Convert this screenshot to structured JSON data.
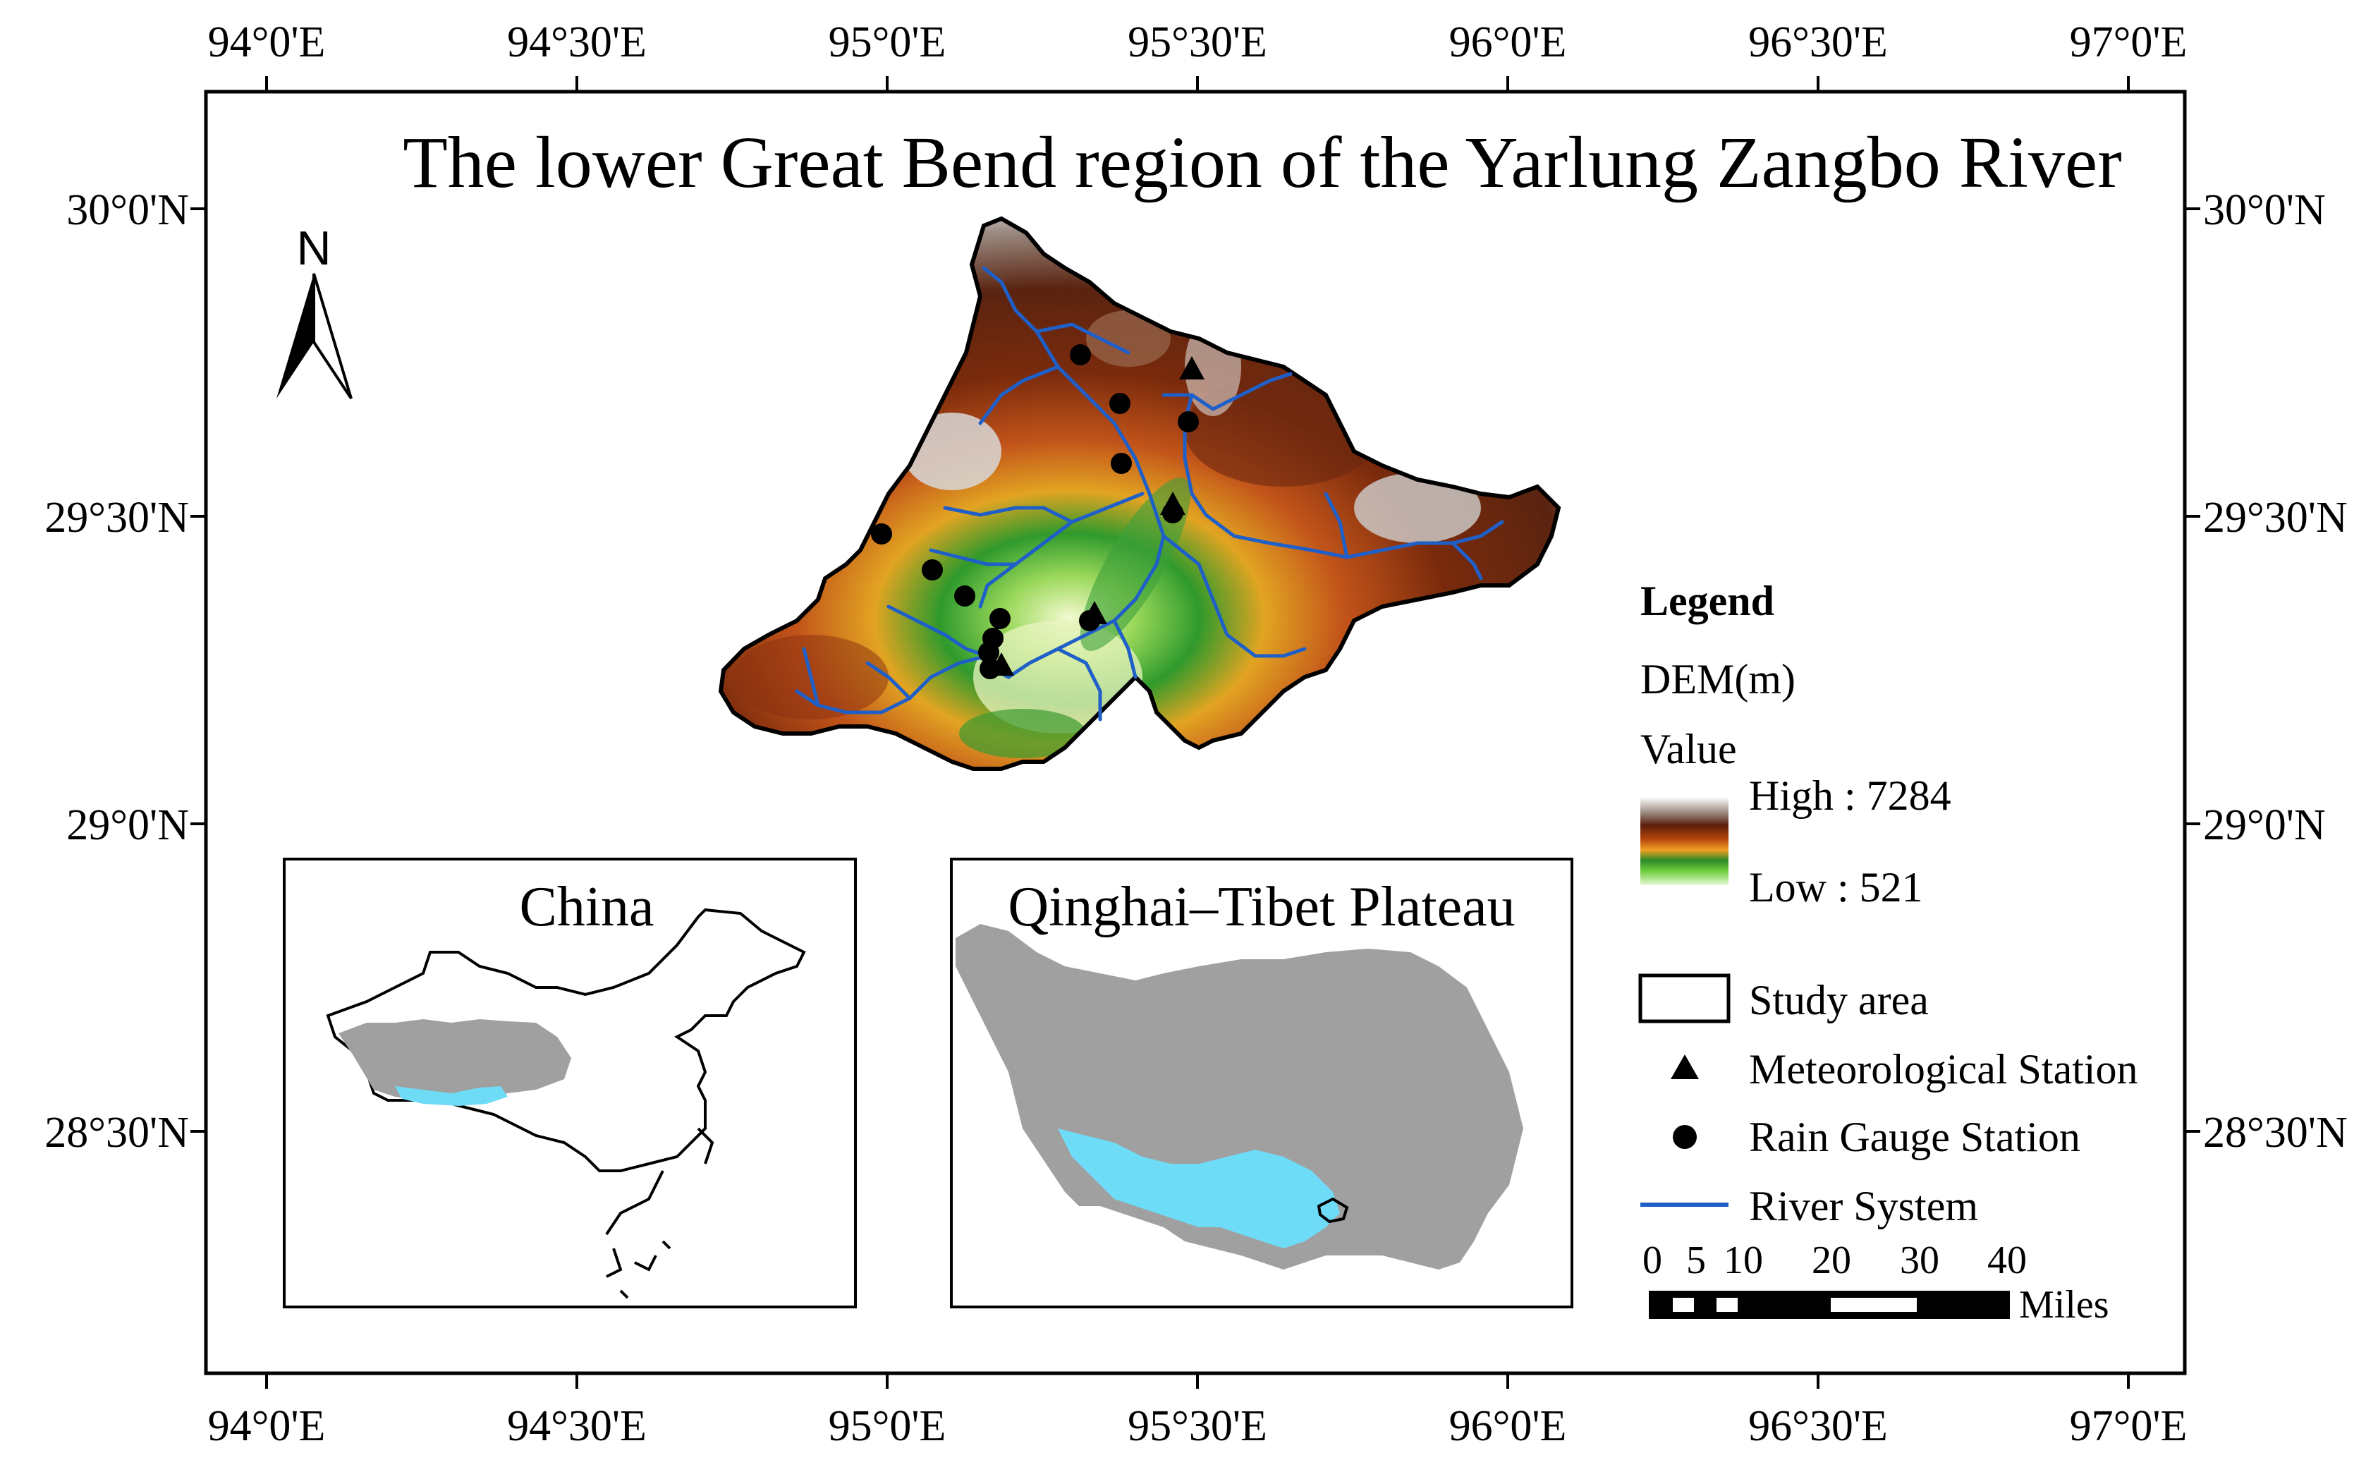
{
  "title": "The lower Great Bend region of the Yarlung Zangbo River",
  "north_arrow": {
    "letter": "N",
    "icon": "north-arrow-icon"
  },
  "graticule": {
    "top_labels": [
      "94°0'E",
      "94°30'E",
      "95°0'E",
      "95°30'E",
      "96°0'E",
      "96°30'E",
      "97°0'E"
    ],
    "bottom_labels": [
      "94°0'E",
      "94°30'E",
      "95°0'E",
      "95°30'E",
      "96°0'E",
      "96°30'E",
      "97°0'E"
    ],
    "left_labels": [
      "30°0'N",
      "29°30'N",
      "29°0'N",
      "28°30'N"
    ],
    "right_labels": [
      "30°0'N",
      "29°30'N",
      "29°0'N",
      "28°30'N"
    ]
  },
  "legend": {
    "heading": "Legend",
    "dem_title": "DEM(m)",
    "value_label": "Value",
    "high_label": "High : 7284",
    "low_label": "Low : 521",
    "items": [
      {
        "icon": "study-area-box-icon",
        "label": "Study area"
      },
      {
        "icon": "triangle-icon",
        "label": "Meteorological Station"
      },
      {
        "icon": "circle-icon",
        "label": "Rain Gauge Station"
      },
      {
        "icon": "line-icon",
        "label": "River System"
      }
    ]
  },
  "scale_bar": {
    "ticks": [
      "0",
      "5",
      "10",
      "20",
      "30",
      "40"
    ],
    "unit": "Miles"
  },
  "insets": {
    "china": {
      "title": "China"
    },
    "plateau": {
      "title": "Qinghai–Tibet Plateau"
    }
  },
  "colors": {
    "frame": "#000000",
    "river": "#1f5fc8",
    "plateau_gray": "#a0a0a0",
    "basin_cyan": "#6fdcf7",
    "dem_high": "#ffffff",
    "dem_mid_brown": "#7a2a0a",
    "dem_orange": "#e0801a",
    "dem_green": "#2c9a2c",
    "dem_low": "#d8f4d0"
  }
}
